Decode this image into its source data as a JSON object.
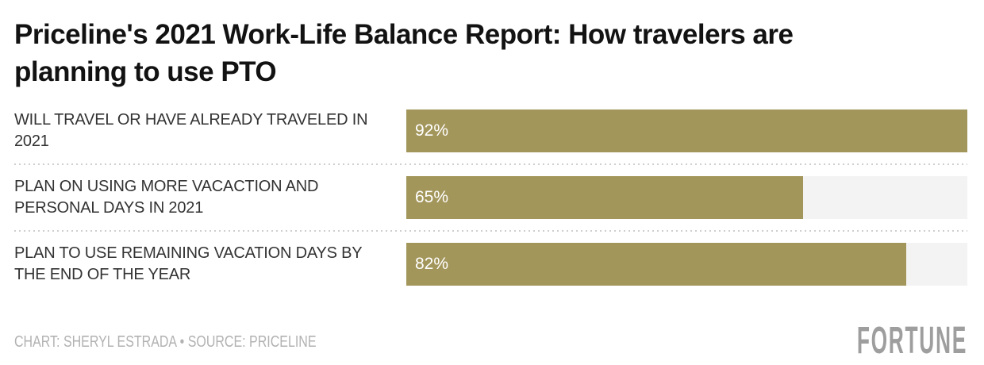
{
  "header": {
    "title": "Priceline's 2021 Work-Life Balance Report: How travelers are planning to use PTO"
  },
  "chart_data": {
    "type": "bar",
    "orientation": "horizontal",
    "title": "Priceline's 2021 Work-Life Balance Report: How travelers are planning to use PTO",
    "categories": [
      "WILL TRAVEL OR HAVE ALREADY TRAVELED IN 2021",
      "PLAN ON USING MORE VACACTION AND PERSONAL DAYS IN 2021",
      "PLAN TO USE REMAINING VACATION DAYS BY THE END OF THE YEAR"
    ],
    "label_lines": [
      [
        "WILL TRAVEL OR HAVE ALREADY TRAVELED IN",
        "2021"
      ],
      [
        "PLAN ON USING MORE VACACTION AND",
        "PERSONAL DAYS IN 2021"
      ],
      [
        "PLAN TO USE REMAINING VACATION DAYS BY",
        "THE END OF THE YEAR"
      ]
    ],
    "values": [
      92,
      65,
      82
    ],
    "value_labels": [
      "92%",
      "65%",
      "82%"
    ],
    "value_label_position": "inside-left",
    "unit": "%",
    "scale": {
      "bar_width_relative_to_max": true,
      "max_value": 92
    },
    "grid": false,
    "legend": false,
    "colors": {
      "bar": "#a3965b",
      "track": "#f3f3f3",
      "value_text": "#ffffff",
      "label_text": "#333333",
      "separator": "#cfcfcf",
      "title_text": "#121212",
      "footer_text": "#b2b2b2",
      "brand_text": "#9e9e9e"
    }
  },
  "footer": {
    "credit": "CHART: SHERYL ESTRADA • SOURCE: PRICELINE",
    "brand": "FORTUNE"
  }
}
